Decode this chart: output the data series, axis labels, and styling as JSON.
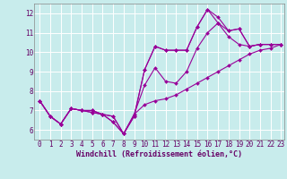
{
  "title": "",
  "xlabel": "Windchill (Refroidissement éolien,°C)",
  "ylabel": "",
  "background_color": "#c8ecec",
  "grid_color": "#b8dada",
  "line_color": "#990099",
  "xlim": [
    -0.5,
    23.3
  ],
  "ylim": [
    5.5,
    12.5
  ],
  "yticks": [
    6,
    7,
    8,
    9,
    10,
    11,
    12
  ],
  "xticks": [
    0,
    1,
    2,
    3,
    4,
    5,
    6,
    7,
    8,
    9,
    10,
    11,
    12,
    13,
    14,
    15,
    16,
    17,
    18,
    19,
    20,
    21,
    22,
    23
  ],
  "series": [
    {
      "x": [
        0,
        1,
        2,
        3,
        4,
        5,
        6,
        7,
        8,
        9,
        10,
        11,
        12,
        13,
        14,
        15,
        16,
        17,
        18,
        19,
        20,
        21,
        22,
        23
      ],
      "y": [
        7.5,
        6.7,
        6.3,
        7.1,
        7.0,
        7.0,
        6.8,
        6.7,
        5.8,
        6.7,
        9.1,
        10.3,
        10.1,
        10.1,
        10.1,
        11.3,
        12.2,
        11.8,
        11.1,
        11.2,
        10.3,
        10.4,
        10.4,
        10.4
      ]
    },
    {
      "x": [
        0,
        1,
        2,
        3,
        4,
        5,
        6,
        7,
        8,
        9,
        10,
        11,
        12,
        13,
        14,
        15,
        16,
        17,
        18,
        19,
        20,
        21,
        22,
        23
      ],
      "y": [
        7.5,
        6.7,
        6.3,
        7.1,
        7.0,
        7.0,
        6.8,
        6.7,
        5.8,
        6.7,
        9.1,
        10.3,
        10.1,
        10.1,
        10.1,
        11.3,
        12.2,
        11.5,
        11.1,
        11.2,
        10.3,
        10.4,
        10.4,
        10.4
      ]
    },
    {
      "x": [
        0,
        1,
        2,
        3,
        4,
        5,
        6,
        7,
        8,
        9,
        10,
        11,
        12,
        13,
        14,
        15,
        16,
        17,
        18,
        19,
        20,
        21,
        22,
        23
      ],
      "y": [
        7.5,
        6.7,
        6.3,
        7.1,
        7.0,
        6.9,
        6.8,
        6.4,
        5.8,
        6.8,
        8.3,
        9.2,
        8.5,
        8.4,
        9.0,
        10.2,
        11.0,
        11.5,
        10.8,
        10.4,
        10.3,
        10.4,
        10.4,
        10.4
      ]
    },
    {
      "x": [
        0,
        1,
        2,
        3,
        4,
        5,
        6,
        7,
        8,
        9,
        10,
        11,
        12,
        13,
        14,
        15,
        16,
        17,
        18,
        19,
        20,
        21,
        22,
        23
      ],
      "y": [
        7.5,
        6.7,
        6.3,
        7.1,
        7.0,
        6.9,
        6.8,
        6.4,
        5.8,
        6.8,
        7.3,
        7.5,
        7.6,
        7.8,
        8.1,
        8.4,
        8.7,
        9.0,
        9.3,
        9.6,
        9.9,
        10.1,
        10.2,
        10.4
      ]
    }
  ],
  "tick_fontsize": 5.5,
  "xlabel_fontsize": 6.0,
  "marker_size": 2.0
}
